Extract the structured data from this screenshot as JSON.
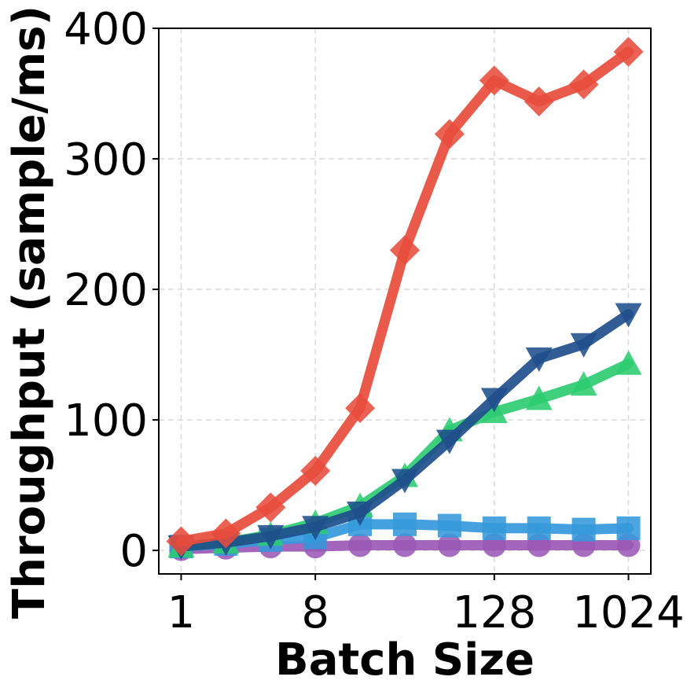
{
  "chart_data": {
    "type": "line",
    "title": "",
    "xlabel": "Batch Size",
    "ylabel": "Throughput (sample/ms)",
    "x_scale": "log2",
    "x": [
      1,
      2,
      4,
      8,
      16,
      32,
      64,
      128,
      256,
      512,
      1024
    ],
    "x_ticks": [
      1,
      8,
      128,
      1024
    ],
    "x_tick_labels": [
      "1",
      "8",
      "128",
      "1024"
    ],
    "ylim": [
      -18,
      400
    ],
    "y_ticks": [
      0,
      100,
      200,
      300,
      400
    ],
    "y_tick_labels": [
      "0",
      "100",
      "200",
      "300",
      "400"
    ],
    "grid": true,
    "legend": "none",
    "series": [
      {
        "color": "#9b59b6",
        "marker": "circle",
        "values": [
          1,
          2,
          3,
          3,
          4,
          4,
          4,
          4,
          4,
          4,
          4
        ]
      },
      {
        "color": "#3498db",
        "marker": "square",
        "values": [
          3,
          5,
          8,
          10,
          20,
          20,
          19,
          17,
          17,
          16,
          17
        ]
      },
      {
        "color": "#2ecc71",
        "marker": "triangle-up",
        "values": [
          3,
          6,
          12,
          21,
          34,
          57,
          92,
          106,
          116,
          127,
          143
        ]
      },
      {
        "color": "#1f4e8c",
        "marker": "triangle-down",
        "values": [
          3,
          6,
          11,
          18,
          29,
          54,
          84,
          116,
          147,
          158,
          181
        ]
      },
      {
        "color": "#e74c3c",
        "marker": "diamond",
        "values": [
          7,
          13,
          33,
          61,
          109,
          230,
          319,
          360,
          344,
          357,
          382
        ]
      }
    ]
  }
}
